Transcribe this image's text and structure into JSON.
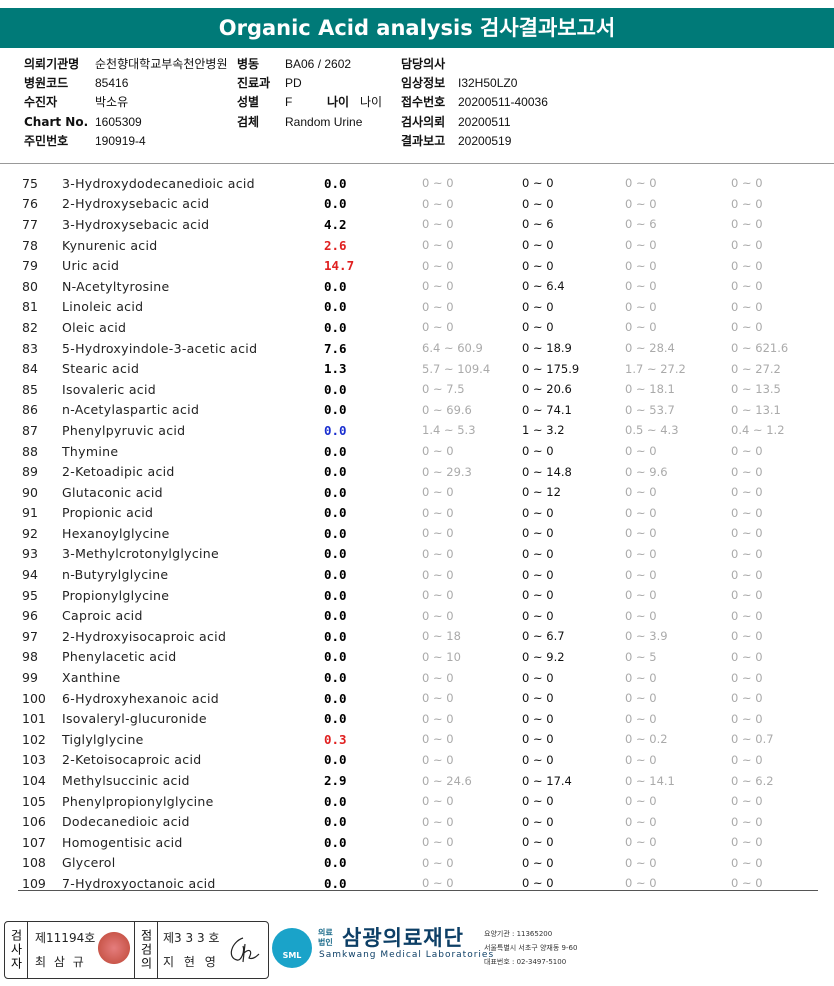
{
  "report": {
    "title": "Organic Acid analysis 검사결과보고서"
  },
  "header": {
    "institution_label": "의뢰기관명",
    "institution_value": "순천향대학교부속천안병원",
    "ward_label": "병동",
    "ward_value": "BA06 / 2602",
    "doctor_label": "담당의사",
    "doctor_value": "",
    "hospital_code_label": "병원코드",
    "hospital_code_value": "85416",
    "dept_label": "진료과",
    "dept_value": "PD",
    "clinical_label": "임상정보",
    "clinical_value": "I32H50LZ0",
    "patient_label": "수진자",
    "patient_value": "박소유",
    "sex_label": "성별",
    "sex_value": "F",
    "age_label": "나이",
    "age_value": "나이",
    "receipt_label": "접수번호",
    "receipt_value": "20200511-40036",
    "chart_label": "Chart No.",
    "chart_value": "1605309",
    "specimen_label": "검체",
    "specimen_value": "Random Urine",
    "request_label": "검사의뢰",
    "request_value": "20200511",
    "id_label": "주민번호",
    "id_value": "190919-4",
    "report_label": "결과보고",
    "report_value": "20200519"
  },
  "rows": [
    {
      "no": "75",
      "name": "3-Hydroxydodecanedioic acid",
      "value": "0.0",
      "flag": "",
      "r1": "0 ~ 0",
      "r2": "0 ~ 0",
      "r3": "0 ~ 0",
      "r4": "0 ~ 0"
    },
    {
      "no": "76",
      "name": "2-Hydroxysebacic acid",
      "value": "0.0",
      "flag": "",
      "r1": "0 ~ 0",
      "r2": "0 ~ 0",
      "r3": "0 ~ 0",
      "r4": "0 ~ 0"
    },
    {
      "no": "77",
      "name": "3-Hydroxysebacic acid",
      "value": "4.2",
      "flag": "",
      "r1": "0 ~ 0",
      "r2": "0 ~ 6",
      "r3": "0 ~ 6",
      "r4": "0 ~ 0"
    },
    {
      "no": "78",
      "name": "Kynurenic acid",
      "value": "2.6",
      "flag": "hi",
      "r1": "0 ~ 0",
      "r2": "0 ~ 0",
      "r3": "0 ~ 0",
      "r4": "0 ~ 0"
    },
    {
      "no": "79",
      "name": "Uric acid",
      "value": "14.7",
      "flag": "hi",
      "r1": "0 ~ 0",
      "r2": "0 ~ 0",
      "r3": "0 ~ 0",
      "r4": "0 ~ 0"
    },
    {
      "no": "80",
      "name": "N-Acetyltyrosine",
      "value": "0.0",
      "flag": "",
      "r1": "0 ~ 0",
      "r2": "0 ~ 6.4",
      "r3": "0 ~ 0",
      "r4": "0 ~ 0"
    },
    {
      "no": "81",
      "name": "Linoleic acid",
      "value": "0.0",
      "flag": "",
      "r1": "0 ~ 0",
      "r2": "0 ~ 0",
      "r3": "0 ~ 0",
      "r4": "0 ~ 0"
    },
    {
      "no": "82",
      "name": "Oleic acid",
      "value": "0.0",
      "flag": "",
      "r1": "0 ~ 0",
      "r2": "0 ~ 0",
      "r3": "0 ~ 0",
      "r4": "0 ~ 0"
    },
    {
      "no": "83",
      "name": "5-Hydroxyindole-3-acetic acid",
      "value": "7.6",
      "flag": "",
      "r1": "6.4 ~ 60.9",
      "r2": "0 ~ 18.9",
      "r3": "0 ~ 28.4",
      "r4": "0 ~ 621.6"
    },
    {
      "no": "84",
      "name": "Stearic acid",
      "value": "1.3",
      "flag": "",
      "r1": "5.7 ~ 109.4",
      "r2": "0 ~ 175.9",
      "r3": "1.7 ~ 27.2",
      "r4": "0 ~ 27.2"
    },
    {
      "no": "85",
      "name": "Isovaleric acid",
      "value": "0.0",
      "flag": "",
      "r1": "0 ~ 7.5",
      "r2": "0 ~ 20.6",
      "r3": "0 ~ 18.1",
      "r4": "0 ~ 13.5"
    },
    {
      "no": "86",
      "name": "n-Acetylaspartic acid",
      "value": "0.0",
      "flag": "",
      "r1": "0 ~ 69.6",
      "r2": "0 ~ 74.1",
      "r3": "0 ~ 53.7",
      "r4": "0 ~ 13.1"
    },
    {
      "no": "87",
      "name": "Phenylpyruvic acid",
      "value": "0.0",
      "flag": "lo",
      "r1": "1.4 ~ 5.3",
      "r2": "1 ~ 3.2",
      "r3": "0.5 ~ 4.3",
      "r4": "0.4 ~ 1.2"
    },
    {
      "no": "88",
      "name": "Thymine",
      "value": "0.0",
      "flag": "",
      "r1": "0 ~ 0",
      "r2": "0 ~ 0",
      "r3": "0 ~ 0",
      "r4": "0 ~ 0"
    },
    {
      "no": "89",
      "name": "2-Ketoadipic acid",
      "value": "0.0",
      "flag": "",
      "r1": "0 ~ 29.3",
      "r2": "0 ~ 14.8",
      "r3": "0 ~ 9.6",
      "r4": "0 ~ 0"
    },
    {
      "no": "90",
      "name": "Glutaconic acid",
      "value": "0.0",
      "flag": "",
      "r1": "0 ~ 0",
      "r2": "0 ~ 12",
      "r3": "0 ~ 0",
      "r4": "0 ~ 0"
    },
    {
      "no": "91",
      "name": "Propionic acid",
      "value": "0.0",
      "flag": "",
      "r1": "0 ~ 0",
      "r2": "0 ~ 0",
      "r3": "0 ~ 0",
      "r4": "0 ~ 0"
    },
    {
      "no": "92",
      "name": "Hexanoylglycine",
      "value": "0.0",
      "flag": "",
      "r1": "0 ~ 0",
      "r2": "0 ~ 0",
      "r3": "0 ~ 0",
      "r4": "0 ~ 0"
    },
    {
      "no": "93",
      "name": "3-Methylcrotonylglycine",
      "value": "0.0",
      "flag": "",
      "r1": "0 ~ 0",
      "r2": "0 ~ 0",
      "r3": "0 ~ 0",
      "r4": "0 ~ 0"
    },
    {
      "no": "94",
      "name": "n-Butyrylglycine",
      "value": "0.0",
      "flag": "",
      "r1": "0 ~ 0",
      "r2": "0 ~ 0",
      "r3": "0 ~ 0",
      "r4": "0 ~ 0"
    },
    {
      "no": "95",
      "name": "Propionylglycine",
      "value": "0.0",
      "flag": "",
      "r1": "0 ~ 0",
      "r2": "0 ~ 0",
      "r3": "0 ~ 0",
      "r4": "0 ~ 0"
    },
    {
      "no": "96",
      "name": "Caproic acid",
      "value": "0.0",
      "flag": "",
      "r1": "0 ~ 0",
      "r2": "0 ~ 0",
      "r3": "0 ~ 0",
      "r4": "0 ~ 0"
    },
    {
      "no": "97",
      "name": "2-Hydroxyisocaproic acid",
      "value": "0.0",
      "flag": "",
      "r1": "0 ~ 18",
      "r2": "0 ~ 6.7",
      "r3": "0 ~ 3.9",
      "r4": "0 ~ 0"
    },
    {
      "no": "98",
      "name": "Phenylacetic acid",
      "value": "0.0",
      "flag": "",
      "r1": "0 ~ 10",
      "r2": "0 ~ 9.2",
      "r3": "0 ~ 5",
      "r4": "0 ~ 0"
    },
    {
      "no": "99",
      "name": "Xanthine",
      "value": "0.0",
      "flag": "",
      "r1": "0 ~ 0",
      "r2": "0 ~ 0",
      "r3": "0 ~ 0",
      "r4": "0 ~ 0"
    },
    {
      "no": "100",
      "name": "6-Hydroxyhexanoic acid",
      "value": "0.0",
      "flag": "",
      "r1": "0 ~ 0",
      "r2": "0 ~ 0",
      "r3": "0 ~ 0",
      "r4": "0 ~ 0"
    },
    {
      "no": "101",
      "name": "Isovaleryl-glucuronide",
      "value": "0.0",
      "flag": "",
      "r1": "0 ~ 0",
      "r2": "0 ~ 0",
      "r3": "0 ~ 0",
      "r4": "0 ~ 0"
    },
    {
      "no": "102",
      "name": "Tiglylglycine",
      "value": "0.3",
      "flag": "hi",
      "r1": "0 ~ 0",
      "r2": "0 ~ 0",
      "r3": "0 ~ 0.2",
      "r4": "0 ~ 0.7"
    },
    {
      "no": "103",
      "name": "2-Ketoisocaproic acid",
      "value": "0.0",
      "flag": "",
      "r1": "0 ~ 0",
      "r2": "0 ~ 0",
      "r3": "0 ~ 0",
      "r4": "0 ~ 0"
    },
    {
      "no": "104",
      "name": "Methylsuccinic acid",
      "value": "2.9",
      "flag": "",
      "r1": "0 ~ 24.6",
      "r2": "0 ~ 17.4",
      "r3": "0 ~ 14.1",
      "r4": "0 ~ 6.2"
    },
    {
      "no": "105",
      "name": "Phenylpropionylglycine",
      "value": "0.0",
      "flag": "",
      "r1": "0 ~ 0",
      "r2": "0 ~ 0",
      "r3": "0 ~ 0",
      "r4": "0 ~ 0"
    },
    {
      "no": "106",
      "name": "Dodecanedioic acid",
      "value": "0.0",
      "flag": "",
      "r1": "0 ~ 0",
      "r2": "0 ~ 0",
      "r3": "0 ~ 0",
      "r4": "0 ~ 0"
    },
    {
      "no": "107",
      "name": "Homogentisic acid",
      "value": "0.0",
      "flag": "",
      "r1": "0 ~ 0",
      "r2": "0 ~ 0",
      "r3": "0 ~ 0",
      "r4": "0 ~ 0"
    },
    {
      "no": "108",
      "name": "Glycerol",
      "value": "0.0",
      "flag": "",
      "r1": "0 ~ 0",
      "r2": "0 ~ 0",
      "r3": "0 ~ 0",
      "r4": "0 ~ 0"
    },
    {
      "no": "109",
      "name": "7-Hydroxyoctanoic acid",
      "value": "0.0",
      "flag": "",
      "r1": "0 ~ 0",
      "r2": "0 ~ 0",
      "r3": "0 ~ 0",
      "r4": "0 ~ 0"
    }
  ],
  "colors": {
    "title_bg": "#007a78",
    "high": "#e02020",
    "low": "#1a2fd0",
    "range_muted": "#aaaaaa"
  },
  "footer": {
    "tester_label": "검사자",
    "tester_license": "제11194호",
    "tester_name": "최 삼 규",
    "reviewer_label": "점검의",
    "reviewer_license": "제3 3 3 호",
    "reviewer_name": "지 현 영",
    "logo_icon_text": "SML",
    "logo_small": "의료\n법인",
    "org_name": "삼광의료재단",
    "org_sub": "Samkwang Medical Laboratories",
    "contact_code": "요양기관 : 11365200",
    "contact_addr": "서울특별시 서초구 양재동 9-60",
    "contact_phone": "대표번호 : 02-3497-5100"
  }
}
